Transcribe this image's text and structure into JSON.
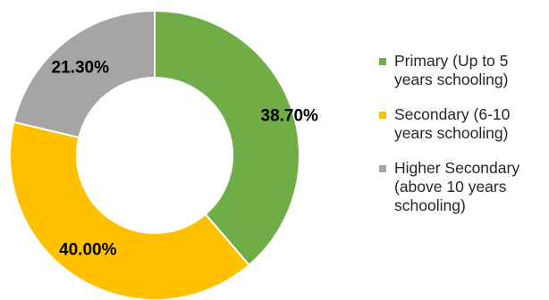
{
  "chart_data": {
    "type": "pie",
    "donut": true,
    "title": "",
    "categories": [
      "Primary (Up to 5\nyears schooling)",
      "Secondary (6-10\nyears schooling)",
      "Higher Secondary\n(above 10 years\nschooling)"
    ],
    "values": [
      38.7,
      40.0,
      21.3
    ],
    "labels": [
      "38.70%",
      "40.00%",
      "21.30%"
    ],
    "colors": [
      "#70ad47",
      "#ffc000",
      "#a5a5a5"
    ],
    "legend_position": "right",
    "start": "top",
    "direction": "clockwise"
  }
}
